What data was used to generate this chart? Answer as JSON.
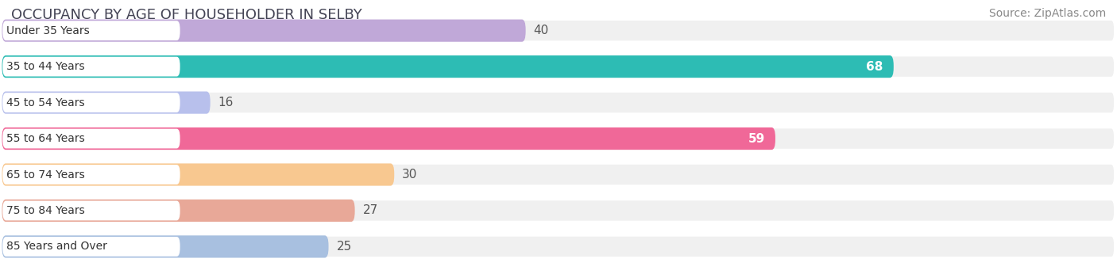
{
  "title": "OCCUPANCY BY AGE OF HOUSEHOLDER IN SELBY",
  "source": "Source: ZipAtlas.com",
  "categories": [
    "Under 35 Years",
    "35 to 44 Years",
    "45 to 54 Years",
    "55 to 64 Years",
    "65 to 74 Years",
    "75 to 84 Years",
    "85 Years and Over"
  ],
  "values": [
    40,
    68,
    16,
    59,
    30,
    27,
    25
  ],
  "bar_colors": [
    "#c0a8d8",
    "#2dbcb4",
    "#b8c0ec",
    "#f06898",
    "#f8c890",
    "#e8a898",
    "#a8c0e0"
  ],
  "bar_bg_color": "#eeeeee",
  "label_bg_color": "#ffffff",
  "label_color_inside": "#ffffff",
  "label_color_outside": "#555555",
  "x_ticks": [
    10,
    45,
    80
  ],
  "x_max": 85,
  "x_min": 0,
  "title_fontsize": 13,
  "source_fontsize": 10,
  "bar_label_fontsize": 11,
  "category_fontsize": 10,
  "tick_fontsize": 11,
  "background_color": "#ffffff",
  "row_bg_color": "#f0f0f0",
  "threshold_inside": 50
}
